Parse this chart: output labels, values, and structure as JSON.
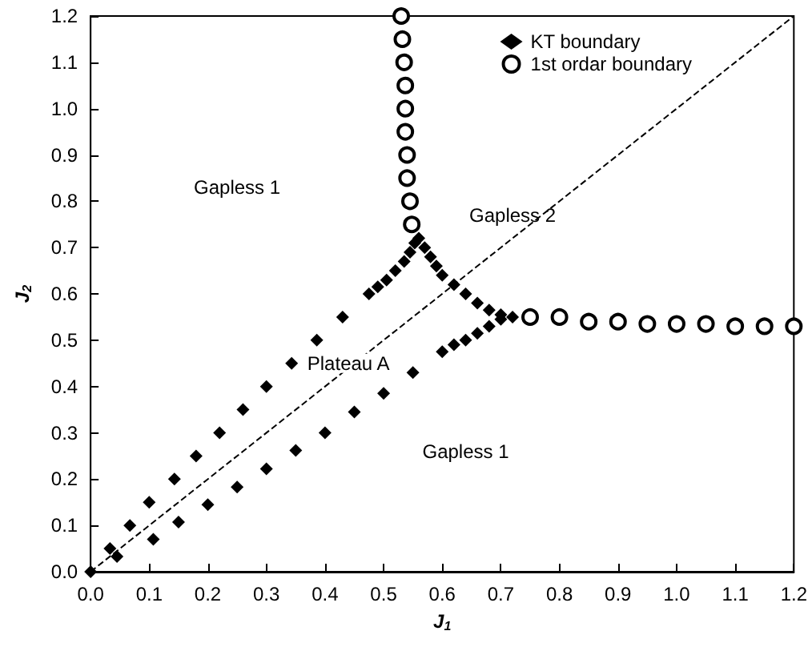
{
  "chart_data": {
    "type": "scatter",
    "xlabel": "J$_{1}$",
    "ylabel": "J$_{2}$",
    "xlim": [
      0,
      1.2
    ],
    "ylim": [
      0,
      1.2
    ],
    "xticks": [
      {
        "value": 0,
        "label": "0.0"
      },
      {
        "value": 0.1,
        "label": "0.1"
      },
      {
        "value": 0.2,
        "label": "0.2"
      },
      {
        "value": 0.3,
        "label": "0.3"
      },
      {
        "value": 0.4,
        "label": "0.4"
      },
      {
        "value": 0.5,
        "label": "0.5"
      },
      {
        "value": 0.6,
        "label": "0.6"
      },
      {
        "value": 0.7,
        "label": "0.7"
      },
      {
        "value": 0.8,
        "label": "0.8"
      },
      {
        "value": 0.9,
        "label": "0.9"
      },
      {
        "value": 1,
        "label": "1.0"
      },
      {
        "value": 1.1,
        "label": "1.1"
      },
      {
        "value": 1.2,
        "label": "1.2"
      }
    ],
    "yticks": [
      {
        "value": 0,
        "label": "0.0"
      },
      {
        "value": 0.1,
        "label": "0.1"
      },
      {
        "value": 0.2,
        "label": "0.2"
      },
      {
        "value": 0.3,
        "label": "0.3"
      },
      {
        "value": 0.4,
        "label": "0.4"
      },
      {
        "value": 0.5,
        "label": "0.5"
      },
      {
        "value": 0.6,
        "label": "0.6"
      },
      {
        "value": 0.7,
        "label": "0.7"
      },
      {
        "value": 0.8,
        "label": "0.8"
      },
      {
        "value": 0.9,
        "label": "0.9"
      },
      {
        "value": 1,
        "label": "1.0"
      },
      {
        "value": 1.1,
        "label": "1.1"
      },
      {
        "value": 1.2,
        "label": "1.2"
      }
    ],
    "grid": false,
    "legend": "top right",
    "annotations": [
      "Gapless 1",
      "Gapless 2",
      "Plateau A",
      "Gapless 1"
    ],
    "series": [
      {
        "type": "line",
        "color": "#000000",
        "line_style": "dashed",
        "marker": "none",
        "x": [
          0,
          1.2
        ],
        "values": [
          0,
          1.2
        ]
      },
      {
        "name": "KT boundary",
        "color": "#000000",
        "marker": "diamond",
        "x": [
          0,
          0.033,
          0.067,
          0.1,
          0.143,
          0.18,
          0.22,
          0.26,
          0.3,
          0.343,
          0.386,
          0.43,
          0.475,
          0.49,
          0.505,
          0.52,
          0.535,
          0.545,
          0.553,
          0.56,
          0.57,
          0.58,
          0.59,
          0.6,
          0.62,
          0.64,
          0.66,
          0.68,
          0.7,
          0.72,
          0.7,
          0.68,
          0.66,
          0.64,
          0.62,
          0.6,
          0.55,
          0.5,
          0.45,
          0.4,
          0.35,
          0.3,
          0.25,
          0.2,
          0.15,
          0.107,
          0.045
        ],
        "values": [
          0,
          0.05,
          0.1,
          0.15,
          0.2,
          0.25,
          0.3,
          0.35,
          0.4,
          0.45,
          0.5,
          0.55,
          0.6,
          0.615,
          0.63,
          0.65,
          0.67,
          0.69,
          0.71,
          0.72,
          0.7,
          0.68,
          0.66,
          0.64,
          0.62,
          0.6,
          0.58,
          0.565,
          0.555,
          0.55,
          0.545,
          0.53,
          0.515,
          0.5,
          0.49,
          0.475,
          0.43,
          0.385,
          0.345,
          0.3,
          0.262,
          0.222,
          0.183,
          0.145,
          0.107,
          0.07,
          0.033
        ]
      },
      {
        "name": "1st ordar boundary",
        "color": "#000000",
        "marker": "circle",
        "x": [
          0.53,
          0.532,
          0.535,
          0.537,
          0.537,
          0.537,
          0.54,
          0.54,
          0.545,
          0.548,
          0.75,
          0.8,
          0.85,
          0.9,
          0.95,
          1,
          1.05,
          1.1,
          1.15,
          1.2
        ],
        "values": [
          1.2,
          1.15,
          1.1,
          1.05,
          1,
          0.95,
          0.9,
          0.85,
          0.8,
          0.75,
          0.55,
          0.55,
          0.54,
          0.54,
          0.535,
          0.535,
          0.535,
          0.53,
          0.53,
          0.53
        ]
      }
    ]
  }
}
